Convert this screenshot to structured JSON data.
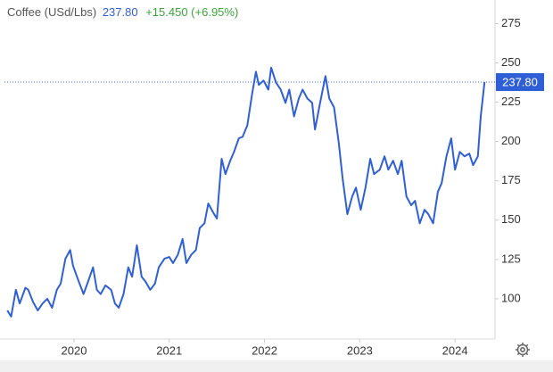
{
  "header": {
    "name": "Coffee (USd/Lbs)",
    "price": "237.80",
    "change": "+15.450 (+6.95%)"
  },
  "chart_data": {
    "type": "line",
    "color": "#2f5fd6",
    "last_price": {
      "value": 237.8,
      "label": "237.80"
    },
    "xlim": [
      2019.27,
      2024.42
    ],
    "xticks": [
      2020,
      2021,
      2022,
      2023,
      2024
    ],
    "ylim": [
      75,
      290
    ],
    "yticks": [
      100,
      125,
      150,
      175,
      200,
      225,
      250,
      275
    ],
    "x": [
      2019.3,
      2019.34,
      2019.39,
      2019.43,
      2019.49,
      2019.52,
      2019.57,
      2019.62,
      2019.67,
      2019.72,
      2019.77,
      2019.82,
      2019.86,
      2019.91,
      2019.96,
      2019.99,
      2020.05,
      2020.1,
      2020.14,
      2020.2,
      2020.24,
      2020.28,
      2020.33,
      2020.39,
      2020.43,
      2020.47,
      2020.52,
      2020.57,
      2020.61,
      2020.66,
      2020.71,
      2020.75,
      2020.8,
      2020.85,
      2020.89,
      2020.95,
      2021.0,
      2021.04,
      2021.09,
      2021.14,
      2021.18,
      2021.23,
      2021.28,
      2021.32,
      2021.37,
      2021.41,
      2021.46,
      2021.5,
      2021.55,
      2021.59,
      2021.64,
      2021.68,
      2021.73,
      2021.77,
      2021.82,
      2021.87,
      2021.91,
      2021.94,
      2021.99,
      2022.04,
      2022.07,
      2022.12,
      2022.17,
      2022.22,
      2022.26,
      2022.31,
      2022.36,
      2022.4,
      2022.45,
      2022.5,
      2022.53,
      2022.58,
      2022.64,
      2022.68,
      2022.73,
      2022.78,
      2022.82,
      2022.87,
      2022.92,
      2022.96,
      2023.01,
      2023.06,
      2023.11,
      2023.15,
      2023.21,
      2023.26,
      2023.3,
      2023.35,
      2023.4,
      2023.44,
      2023.49,
      2023.54,
      2023.58,
      2023.63,
      2023.68,
      2023.72,
      2023.77,
      2023.82,
      2023.86,
      2023.91,
      2023.96,
      2024.0,
      2024.05,
      2024.1,
      2024.15,
      2024.19,
      2024.24,
      2024.27,
      2024.31
    ],
    "values": [
      92.6,
      88.7,
      105.7,
      97,
      107,
      105.7,
      98,
      92.6,
      97,
      100,
      94.3,
      105.7,
      109.6,
      125.5,
      131,
      121,
      111,
      103,
      109.6,
      120,
      105.7,
      103,
      108.5,
      105.7,
      97,
      94.3,
      103,
      120,
      114,
      134,
      114,
      111,
      105.7,
      109.6,
      120,
      125.5,
      126.6,
      122.7,
      128,
      138,
      122.7,
      128,
      131,
      145,
      148,
      160.6,
      155,
      151,
      189,
      179.3,
      187.8,
      193.4,
      202,
      203,
      210.4,
      230.3,
      244.4,
      236,
      238.8,
      233,
      247,
      237.6,
      233,
      224.6,
      233,
      216,
      227.4,
      233,
      227.4,
      224.6,
      207.6,
      223.5,
      241.6,
      227.4,
      221.8,
      199,
      176.5,
      153.8,
      165,
      170.7,
      156.6,
      170.7,
      189,
      179.3,
      182.1,
      190.6,
      182.1,
      187.8,
      179.3,
      187.8,
      165,
      159.5,
      162.3,
      148,
      156.6,
      153.8,
      148,
      168,
      173.6,
      190.6,
      202,
      182.1,
      193.4,
      190.6,
      192.3,
      185,
      190.6,
      216,
      237.8
    ]
  }
}
